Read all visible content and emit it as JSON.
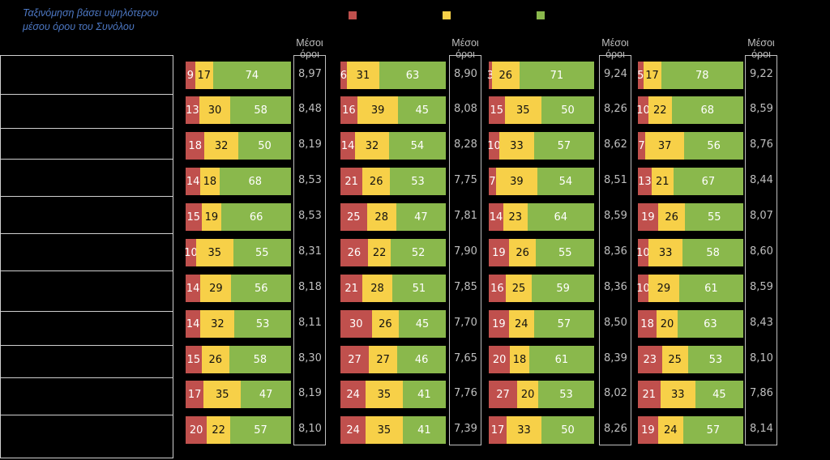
{
  "note": "Ταξινόμηση βάσει υψηλότερου μέσου όρου του Συνόλου",
  "legend": [
    {
      "color": "#c0504d",
      "label": ""
    },
    {
      "color": "#f7d048",
      "label": ""
    },
    {
      "color": "#8ab84c",
      "label": ""
    }
  ],
  "mean_header": "Μέσοι όροι",
  "colors": {
    "red": "#c0504d",
    "yellow": "#f7d048",
    "green": "#8ab84c"
  },
  "chart_data": {
    "type": "bar",
    "stacked": true,
    "orientation": "horizontal",
    "rows": 11,
    "groups": [
      {
        "red": [
          9,
          13,
          18,
          14,
          15,
          10,
          14,
          14,
          15,
          17,
          20
        ],
        "yellow": [
          17,
          30,
          32,
          18,
          19,
          35,
          29,
          32,
          26,
          35,
          22
        ],
        "green": [
          74,
          58,
          50,
          68,
          66,
          55,
          56,
          53,
          58,
          47,
          57
        ],
        "means": [
          "8,97",
          "8,48",
          "8,19",
          "8,53",
          "8,53",
          "8,31",
          "8,18",
          "8,11",
          "8,30",
          "8,19",
          "8,10"
        ]
      },
      {
        "red": [
          6,
          16,
          14,
          21,
          25,
          26,
          21,
          30,
          27,
          24,
          24
        ],
        "yellow": [
          31,
          39,
          32,
          26,
          28,
          22,
          28,
          26,
          27,
          35,
          35
        ],
        "green": [
          63,
          45,
          54,
          53,
          47,
          52,
          51,
          45,
          46,
          41,
          41
        ],
        "means": [
          "8,90",
          "8,08",
          "8,28",
          "7,75",
          "7,81",
          "7,90",
          "7,85",
          "7,70",
          "7,65",
          "7,76",
          "7,39"
        ]
      },
      {
        "red": [
          3,
          15,
          10,
          7,
          14,
          19,
          16,
          19,
          20,
          27,
          17
        ],
        "yellow": [
          26,
          35,
          33,
          39,
          23,
          26,
          25,
          24,
          18,
          20,
          33
        ],
        "green": [
          71,
          50,
          57,
          54,
          64,
          55,
          59,
          57,
          61,
          53,
          50
        ],
        "means": [
          "9,24",
          "8,26",
          "8,62",
          "8,51",
          "8,59",
          "8,36",
          "8,36",
          "8,50",
          "8,39",
          "8,02",
          "8,26"
        ]
      },
      {
        "red": [
          5,
          10,
          7,
          13,
          19,
          10,
          10,
          18,
          23,
          21,
          19
        ],
        "yellow": [
          17,
          22,
          37,
          21,
          26,
          33,
          29,
          20,
          25,
          33,
          24
        ],
        "green": [
          78,
          68,
          56,
          67,
          55,
          58,
          61,
          63,
          53,
          45,
          57
        ],
        "means": [
          "9,22",
          "8,59",
          "8,76",
          "8,44",
          "8,07",
          "8,60",
          "8,59",
          "8,43",
          "8,10",
          "7,86",
          "8,14"
        ]
      }
    ]
  }
}
